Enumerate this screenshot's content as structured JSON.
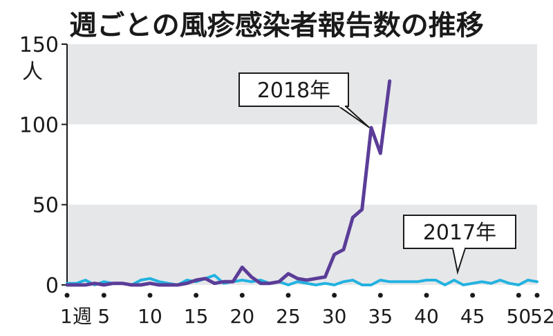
{
  "chart_data": {
    "type": "line",
    "title": "週ごとの風疹感染者報告数の推移",
    "ylabel_unit": "人",
    "xlabel_suffix": "週",
    "ylim": [
      0,
      150
    ],
    "xlim": [
      1,
      52
    ],
    "y_ticks": [
      0,
      50,
      100,
      150
    ],
    "y_tick_labels": [
      "0",
      "50",
      "100",
      "150"
    ],
    "x_ticks": [
      1,
      5,
      10,
      15,
      20,
      25,
      30,
      35,
      40,
      45,
      50,
      52
    ],
    "x_tick_labels": [
      "1",
      "5",
      "10",
      "15",
      "20",
      "25",
      "30",
      "35",
      "40",
      "45",
      "50",
      "52"
    ],
    "band_color": "#e6e7e9",
    "series": [
      {
        "name": "2018年",
        "color": "#5b3d98",
        "x": [
          1,
          2,
          3,
          4,
          5,
          6,
          7,
          8,
          9,
          10,
          11,
          12,
          13,
          14,
          15,
          16,
          17,
          18,
          19,
          20,
          21,
          22,
          23,
          24,
          25,
          26,
          27,
          28,
          29,
          30,
          31,
          32,
          33,
          34,
          35,
          36
        ],
        "y": [
          0,
          0,
          0,
          1,
          0,
          1,
          1,
          0,
          0,
          1,
          0,
          0,
          0,
          1,
          3,
          4,
          1,
          2,
          2,
          11,
          5,
          1,
          1,
          2,
          7,
          4,
          3,
          4,
          5,
          19,
          22,
          42,
          47,
          98,
          82,
          127
        ]
      },
      {
        "name": "2017年",
        "color": "#22b2e0",
        "x": [
          1,
          2,
          3,
          4,
          5,
          6,
          7,
          8,
          9,
          10,
          11,
          12,
          13,
          14,
          15,
          16,
          17,
          18,
          19,
          20,
          21,
          22,
          23,
          24,
          25,
          26,
          27,
          28,
          29,
          30,
          31,
          32,
          33,
          34,
          35,
          36,
          37,
          38,
          39,
          40,
          41,
          42,
          43,
          44,
          45,
          46,
          47,
          48,
          49,
          50,
          51,
          52
        ],
        "y": [
          1,
          1,
          3,
          0,
          2,
          1,
          1,
          0,
          3,
          4,
          2,
          1,
          0,
          3,
          2,
          4,
          6,
          1,
          2,
          3,
          2,
          3,
          1,
          2,
          0,
          2,
          1,
          0,
          1,
          0,
          2,
          3,
          0,
          0,
          3,
          2,
          2,
          2,
          2,
          3,
          3,
          0,
          3,
          0,
          1,
          2,
          1,
          3,
          1,
          0,
          3,
          2
        ]
      }
    ],
    "annotations": [
      {
        "text": "2018年"
      },
      {
        "text": "2017年"
      }
    ]
  }
}
